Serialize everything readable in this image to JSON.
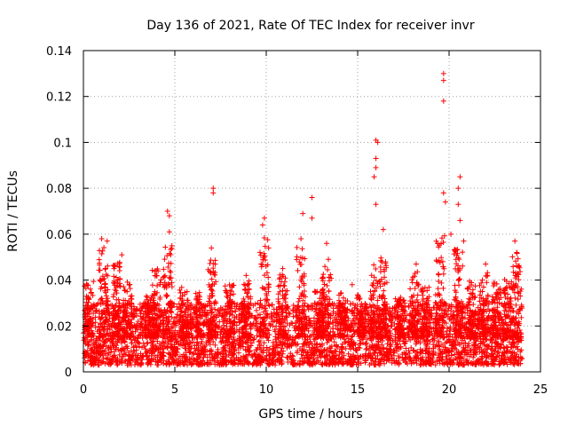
{
  "chart_data": {
    "type": "scatter",
    "title": "Day 136 of 2021, Rate Of TEC Index for receiver invr",
    "xlabel": "GPS time / hours",
    "ylabel": "ROTI / TECUs",
    "xlim": [
      0,
      25
    ],
    "ylim": [
      0,
      0.14
    ],
    "xticks": [
      0,
      5,
      10,
      15,
      20,
      25
    ],
    "yticks": [
      0,
      0.02,
      0.04,
      0.06,
      0.08,
      0.1,
      0.12,
      0.14
    ],
    "xtick_labels": [
      "0",
      "5",
      "10",
      "15",
      "20",
      "25"
    ],
    "ytick_labels": [
      "0",
      "0.02",
      "0.04",
      "0.06",
      "0.08",
      "0.1",
      "0.12",
      "0.14"
    ],
    "grid": true,
    "marker": "+",
    "series_color": "#ff0000",
    "x_range_of_data": [
      0,
      24
    ],
    "baseline_band": [
      0.003,
      0.03
    ],
    "notable_points": [
      {
        "x": 1.0,
        "y": 0.058
      },
      {
        "x": 1.3,
        "y": 0.057
      },
      {
        "x": 2.1,
        "y": 0.051
      },
      {
        "x": 4.6,
        "y": 0.07
      },
      {
        "x": 4.7,
        "y": 0.068
      },
      {
        "x": 4.7,
        "y": 0.061
      },
      {
        "x": 7.1,
        "y": 0.08
      },
      {
        "x": 7.1,
        "y": 0.078
      },
      {
        "x": 7.0,
        "y": 0.054
      },
      {
        "x": 9.9,
        "y": 0.067
      },
      {
        "x": 9.8,
        "y": 0.064
      },
      {
        "x": 12.0,
        "y": 0.069
      },
      {
        "x": 11.9,
        "y": 0.058
      },
      {
        "x": 12.5,
        "y": 0.076
      },
      {
        "x": 12.5,
        "y": 0.067
      },
      {
        "x": 13.3,
        "y": 0.056
      },
      {
        "x": 13.4,
        "y": 0.049
      },
      {
        "x": 16.0,
        "y": 0.101
      },
      {
        "x": 16.1,
        "y": 0.1
      },
      {
        "x": 16.0,
        "y": 0.093
      },
      {
        "x": 16.0,
        "y": 0.089
      },
      {
        "x": 15.9,
        "y": 0.085
      },
      {
        "x": 16.0,
        "y": 0.073
      },
      {
        "x": 16.4,
        "y": 0.062
      },
      {
        "x": 19.7,
        "y": 0.13
      },
      {
        "x": 19.7,
        "y": 0.127
      },
      {
        "x": 19.7,
        "y": 0.118
      },
      {
        "x": 19.7,
        "y": 0.078
      },
      {
        "x": 19.8,
        "y": 0.074
      },
      {
        "x": 20.6,
        "y": 0.085
      },
      {
        "x": 20.5,
        "y": 0.08
      },
      {
        "x": 20.5,
        "y": 0.073
      },
      {
        "x": 20.6,
        "y": 0.066
      },
      {
        "x": 20.1,
        "y": 0.06
      },
      {
        "x": 20.8,
        "y": 0.057
      },
      {
        "x": 22.0,
        "y": 0.047
      },
      {
        "x": 23.6,
        "y": 0.057
      },
      {
        "x": 23.7,
        "y": 0.052
      },
      {
        "x": 8.9,
        "y": 0.042
      },
      {
        "x": 10.9,
        "y": 0.045
      },
      {
        "x": 14.7,
        "y": 0.038
      },
      {
        "x": 18.2,
        "y": 0.047
      }
    ],
    "burst_clusters": [
      {
        "x": 0.3,
        "peak": 0.04
      },
      {
        "x": 1.1,
        "peak": 0.055
      },
      {
        "x": 1.8,
        "peak": 0.048
      },
      {
        "x": 2.4,
        "peak": 0.04
      },
      {
        "x": 3.6,
        "peak": 0.033
      },
      {
        "x": 4.0,
        "peak": 0.045
      },
      {
        "x": 4.6,
        "peak": 0.055
      },
      {
        "x": 5.5,
        "peak": 0.037
      },
      {
        "x": 6.4,
        "peak": 0.035
      },
      {
        "x": 7.0,
        "peak": 0.05
      },
      {
        "x": 8.0,
        "peak": 0.038
      },
      {
        "x": 8.9,
        "peak": 0.04
      },
      {
        "x": 9.9,
        "peak": 0.06
      },
      {
        "x": 10.9,
        "peak": 0.043
      },
      {
        "x": 11.9,
        "peak": 0.055
      },
      {
        "x": 12.9,
        "peak": 0.038
      },
      {
        "x": 13.3,
        "peak": 0.048
      },
      {
        "x": 14.2,
        "peak": 0.035
      },
      {
        "x": 15.2,
        "peak": 0.034
      },
      {
        "x": 15.9,
        "peak": 0.047
      },
      {
        "x": 16.4,
        "peak": 0.05
      },
      {
        "x": 17.3,
        "peak": 0.033
      },
      {
        "x": 18.1,
        "peak": 0.044
      },
      {
        "x": 18.7,
        "peak": 0.038
      },
      {
        "x": 19.5,
        "peak": 0.06
      },
      {
        "x": 20.5,
        "peak": 0.055
      },
      {
        "x": 21.2,
        "peak": 0.04
      },
      {
        "x": 21.9,
        "peak": 0.045
      },
      {
        "x": 22.6,
        "peak": 0.04
      },
      {
        "x": 23.2,
        "peak": 0.042
      },
      {
        "x": 23.7,
        "peak": 0.052
      }
    ]
  }
}
